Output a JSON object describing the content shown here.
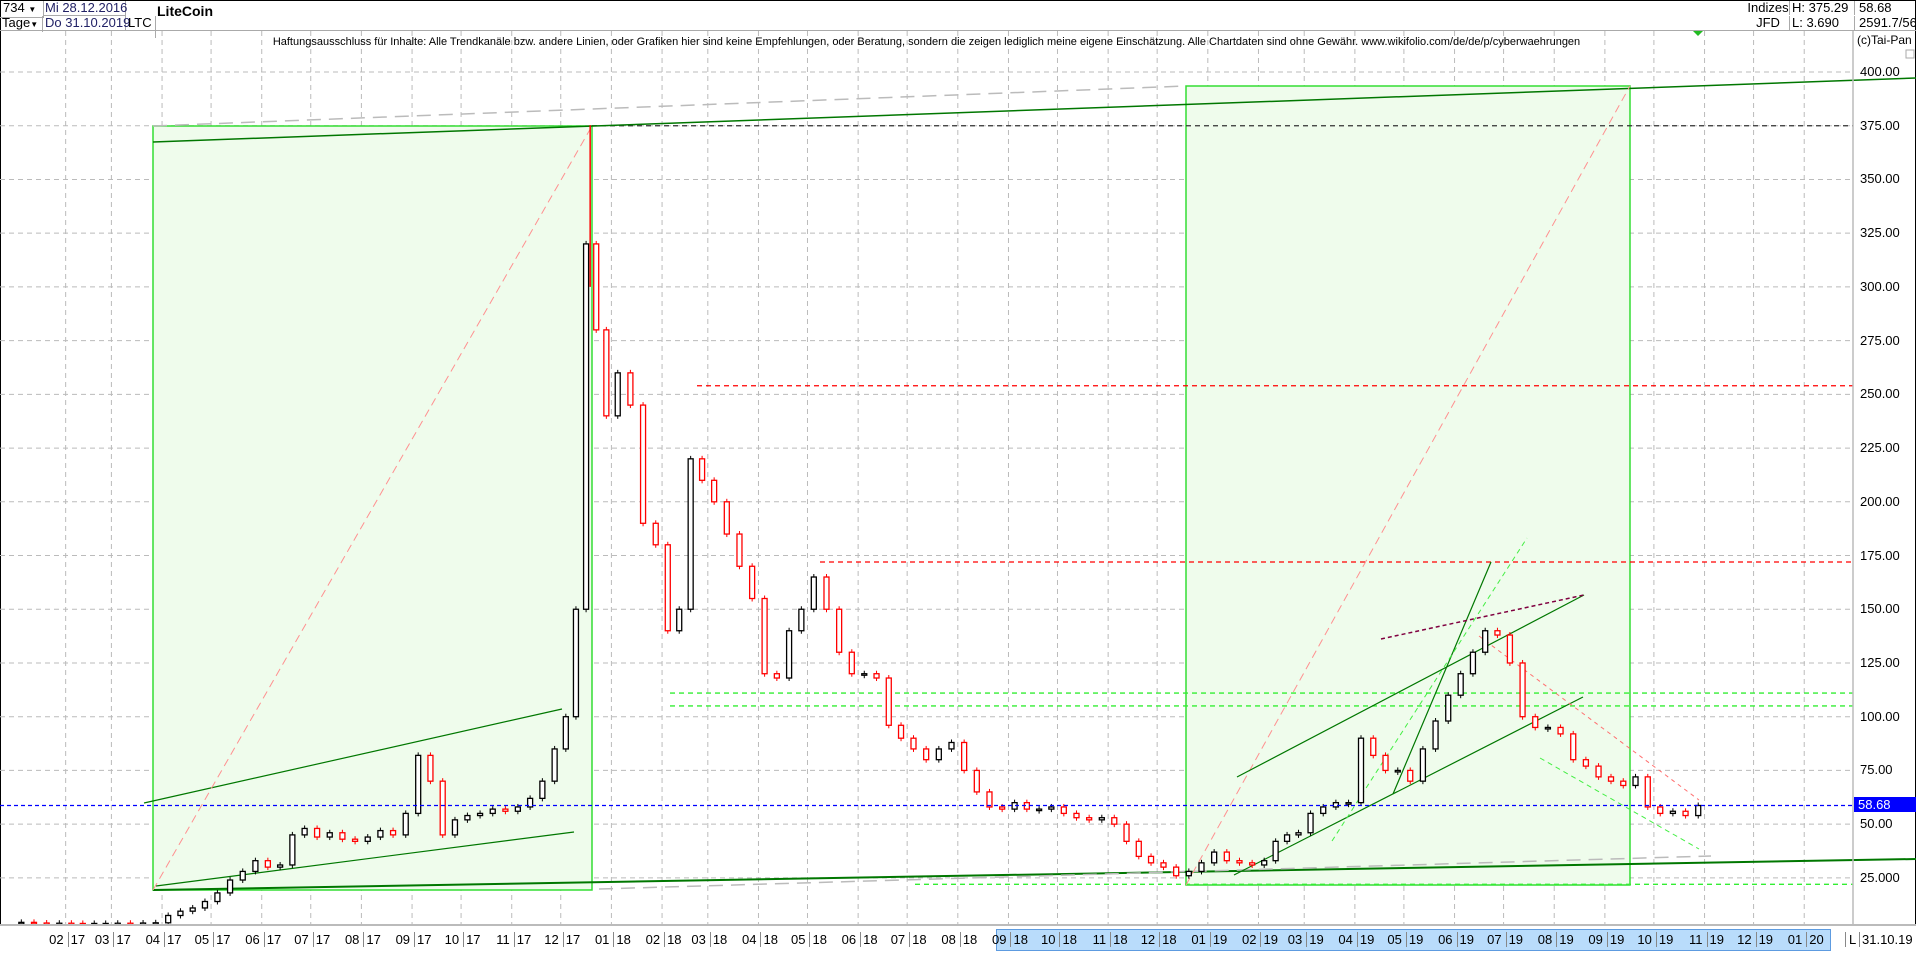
{
  "header": {
    "bars": "734",
    "period": "Tage",
    "date_from": "Mi 28.12.2016",
    "date_to": "Do 31.10.2019",
    "symbol": "LTC",
    "title": "LiteCoin",
    "group": "Indizes",
    "source": "JFD",
    "high": "H: 375.29",
    "low": "L: 3.690",
    "last": "58.68",
    "extra": "2591.7/56",
    "copyright": "(c)Tai-Pan"
  },
  "disclaimer": "Haftungsausschluss für Inhalte: Alle Trendkanäle bzw. andere Linien, oder Grafiken hier sind keine Empfehlungen, oder Beratung, sondern die zeigen lediglich meine eigene Einschätzung. Alle Chartdaten sind ohne Gewähr.  www.wikifolio.com/de/de/p/cyberwaehrungen",
  "xaxis": {
    "ticks": [
      "02 17",
      "03 17",
      "04 17",
      "05 17",
      "06 17",
      "07 17",
      "08 17",
      "09 17",
      "10 17",
      "11 17",
      "12 17",
      "01 18",
      "02 18",
      "03 18",
      "04 18",
      "05 18",
      "06 18",
      "07 18",
      "08 18",
      "09 18",
      "10 18",
      "11 18",
      "12 18",
      "01 19",
      "02 19",
      "03 19",
      "04 19",
      "05 19",
      "06 19",
      "07 19",
      "08 19",
      "09 19",
      "10 19",
      "11 19",
      "12 19",
      "01 20"
    ],
    "mode": "L",
    "end_date": "31.10.19"
  },
  "colors": {
    "up": "#000000",
    "down": "#ff0000",
    "box_fill": "#effcec",
    "box_border": "#33dd33",
    "trend": "#007700",
    "last_price": "#0000ff",
    "grid": "#bbbbbb"
  },
  "chart_data": {
    "type": "candlestick",
    "ylim": [
      0,
      410
    ],
    "yticks": [
      "400.00",
      "375.00",
      "350.00",
      "325.00",
      "300.00",
      "275.00",
      "250.00",
      "225.00",
      "200.00",
      "175.00",
      "150.00",
      "125.00",
      "100.00",
      "75.00",
      "50.00",
      "25.000"
    ],
    "ytick_values": [
      400,
      375,
      350,
      325,
      300,
      275,
      250,
      225,
      200,
      175,
      150,
      125,
      100,
      75,
      50,
      25
    ],
    "grid": true,
    "last_price": 58.68,
    "high": 375.29,
    "low": 3.69,
    "horizontal_levels": [
      {
        "value": 375,
        "color": "#333333"
      },
      {
        "value": 254,
        "color": "#ff0000"
      },
      {
        "value": 172,
        "color": "#ff0000"
      },
      {
        "value": 111,
        "color": "#33ee33"
      },
      {
        "value": 105,
        "color": "#33ee33"
      },
      {
        "value": 22,
        "color": "#33ee33"
      }
    ],
    "approx_weekly_closes": [
      {
        "month": "01/17",
        "closes": [
          4.3,
          4.0,
          3.9,
          3.9
        ]
      },
      {
        "month": "02/17",
        "closes": [
          3.8,
          3.7,
          3.8,
          3.8
        ]
      },
      {
        "month": "03/17",
        "closes": [
          3.9,
          3.8,
          4.0,
          4.1
        ]
      },
      {
        "month": "04/17",
        "closes": [
          7.5,
          9.5,
          11,
          14
        ]
      },
      {
        "month": "05/17",
        "closes": [
          18,
          24,
          28,
          33
        ]
      },
      {
        "month": "06/17",
        "closes": [
          30,
          31,
          45,
          48
        ]
      },
      {
        "month": "07/17",
        "closes": [
          44,
          46,
          43,
          42
        ]
      },
      {
        "month": "08/17",
        "closes": [
          44,
          47,
          45,
          55
        ]
      },
      {
        "month": "09/17",
        "closes": [
          82,
          70,
          45,
          52
        ]
      },
      {
        "month": "10/17",
        "closes": [
          54,
          55,
          57,
          56
        ]
      },
      {
        "month": "11/17",
        "closes": [
          58,
          62,
          70,
          85
        ]
      },
      {
        "month": "12/17",
        "closes": [
          100,
          150,
          320,
          280,
          240
        ]
      },
      {
        "month": "01/18",
        "closes": [
          260,
          245,
          190,
          180
        ]
      },
      {
        "month": "02/18",
        "closes": [
          140,
          150,
          220,
          210
        ]
      },
      {
        "month": "03/18",
        "closes": [
          200,
          185,
          170,
          155
        ]
      },
      {
        "month": "04/18",
        "closes": [
          120,
          118,
          140,
          150
        ]
      },
      {
        "month": "05/18",
        "closes": [
          165,
          150,
          130,
          120
        ]
      },
      {
        "month": "06/18",
        "closes": [
          120,
          118,
          96,
          90
        ]
      },
      {
        "month": "07/18",
        "closes": [
          85,
          80,
          85,
          88
        ]
      },
      {
        "month": "08/18",
        "closes": [
          75,
          65,
          58,
          57
        ]
      },
      {
        "month": "09/18",
        "closes": [
          60,
          57,
          57,
          58
        ]
      },
      {
        "month": "10/18",
        "closes": [
          55,
          53,
          52,
          53
        ]
      },
      {
        "month": "11/18",
        "closes": [
          50,
          42,
          35,
          32
        ]
      },
      {
        "month": "12/18",
        "closes": [
          30,
          26,
          28,
          32
        ]
      },
      {
        "month": "01/19",
        "closes": [
          37,
          33,
          32,
          31
        ]
      },
      {
        "month": "02/19",
        "closes": [
          33,
          42,
          45,
          46
        ]
      },
      {
        "month": "03/19",
        "closes": [
          55,
          58,
          60,
          60
        ]
      },
      {
        "month": "04/19",
        "closes": [
          90,
          82,
          75,
          75
        ]
      },
      {
        "month": "05/19",
        "closes": [
          70,
          85,
          98,
          110
        ]
      },
      {
        "month": "06/19",
        "closes": [
          120,
          130,
          140,
          138
        ]
      },
      {
        "month": "07/19",
        "closes": [
          125,
          100,
          95,
          95
        ]
      },
      {
        "month": "08/19",
        "closes": [
          92,
          80,
          77,
          72
        ]
      },
      {
        "month": "09/19",
        "closes": [
          70,
          68,
          72,
          58
        ]
      },
      {
        "month": "10/19",
        "closes": [
          55,
          56,
          54,
          58.68
        ]
      }
    ]
  }
}
